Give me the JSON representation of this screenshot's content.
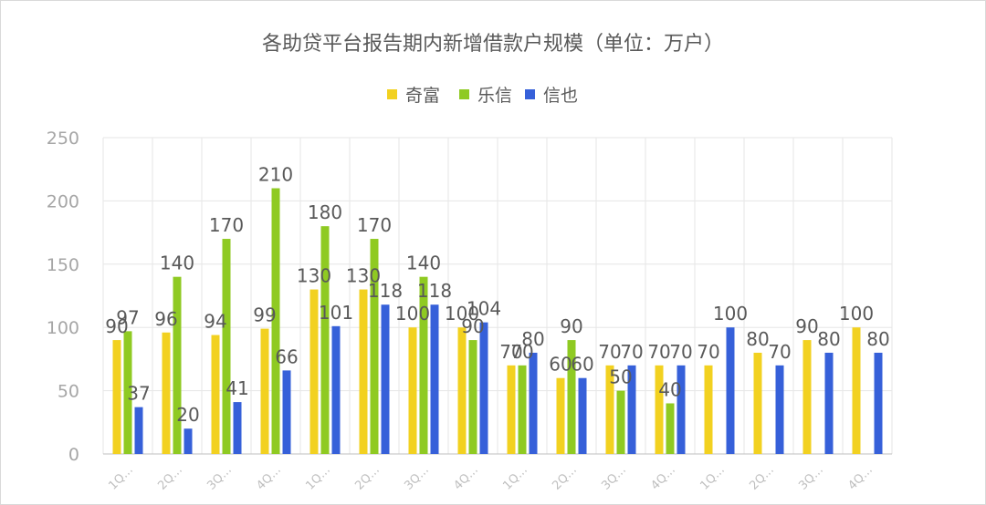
{
  "chart_data": {
    "type": "bar",
    "title": "各助贷平台报告期内新增借款户规模（单位：万户）",
    "categories": [
      "1Q...",
      "2Q...",
      "3Q...",
      "4Q...",
      "1Q...",
      "2Q...",
      "3Q...",
      "4Q...",
      "1Q...",
      "2Q...",
      "3Q...",
      "4Q...",
      "1Q...",
      "2Q...",
      "3Q...",
      "4Q..."
    ],
    "series": [
      {
        "name": "奇富",
        "color": "#f2d120",
        "values": [
          90,
          96,
          94,
          99,
          130,
          130,
          100,
          100,
          70,
          60,
          70,
          70,
          70,
          80,
          90,
          100
        ]
      },
      {
        "name": "乐信",
        "color": "#8fca22",
        "values": [
          97,
          140,
          170,
          210,
          180,
          170,
          140,
          90,
          70,
          90,
          50,
          40,
          null,
          null,
          null,
          null
        ]
      },
      {
        "name": "信也",
        "color": "#3660d9",
        "values": [
          37,
          20,
          41,
          66,
          101,
          118,
          118,
          104,
          80,
          60,
          70,
          70,
          100,
          70,
          80,
          80
        ]
      }
    ],
    "yticks": [
      "0",
      "50",
      "100",
      "150",
      "200",
      "250"
    ],
    "ylim": [
      0,
      250
    ],
    "grid": true,
    "legend_position": "top-center"
  }
}
